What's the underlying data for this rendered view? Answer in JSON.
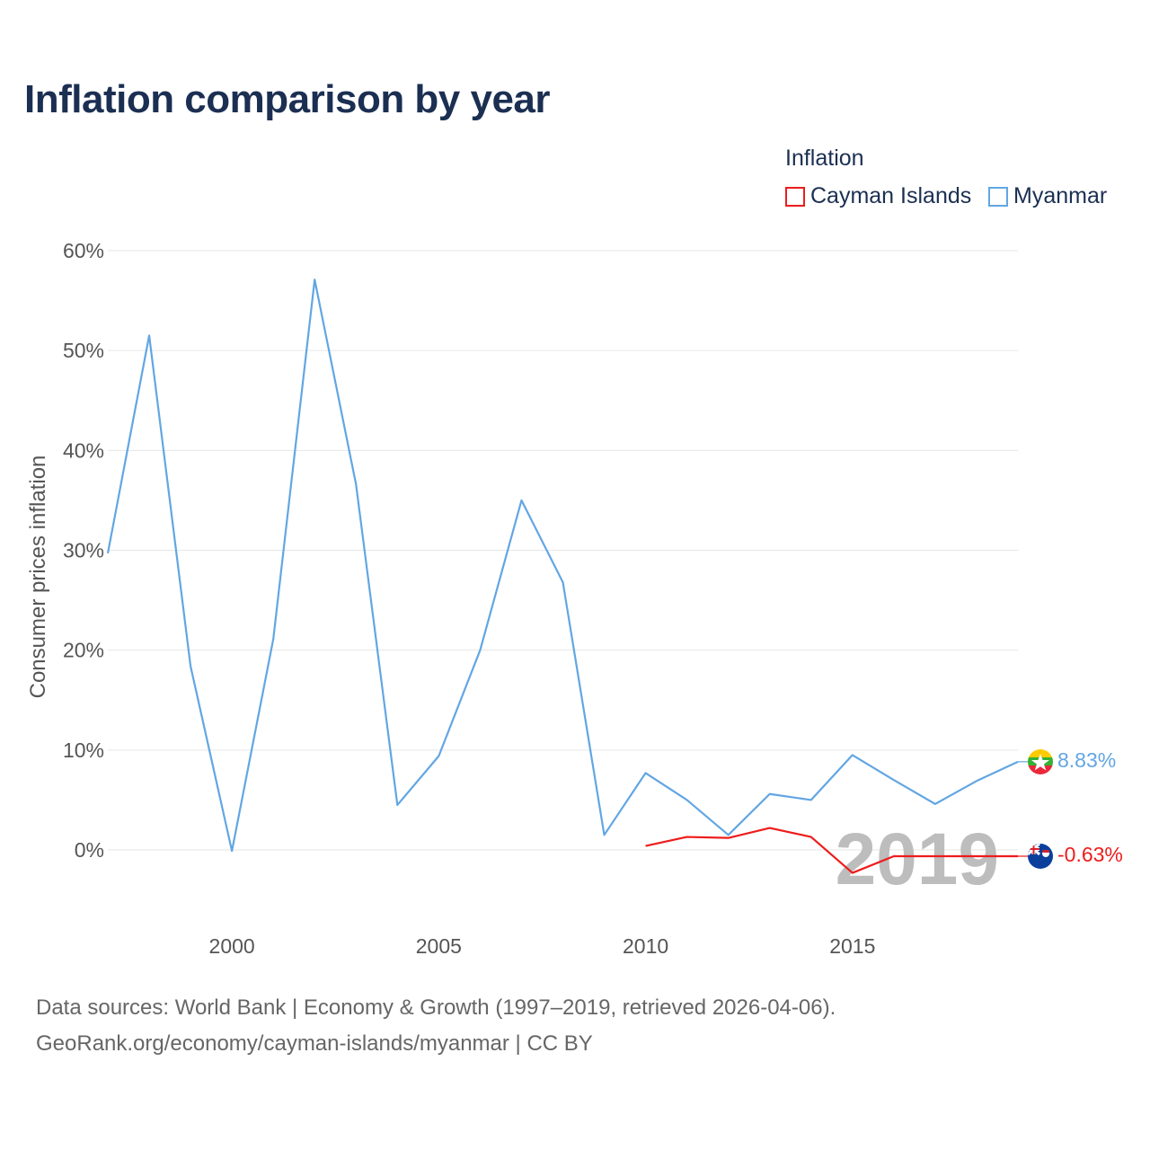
{
  "title": "Inflation comparison by year",
  "legend": {
    "title": "Inflation",
    "items": [
      {
        "label": "Cayman Islands",
        "color": "#ee1c1c"
      },
      {
        "label": "Myanmar",
        "color": "#62a6e3"
      }
    ]
  },
  "year_watermark": "2019",
  "sources": {
    "line1": "Data sources: World Bank | Economy & Growth (1997–2019, retrieved 2026-04-06).",
    "line2": "GeoRank.org/economy/cayman-islands/myanmar | CC BY"
  },
  "chart_data": {
    "type": "line",
    "title": "Inflation comparison by year",
    "xlabel": "",
    "ylabel": "Consumer prices inflation",
    "xlim": [
      1997,
      2019
    ],
    "ylim": [
      -10,
      60
    ],
    "x_ticks": [
      2000,
      2005,
      2010,
      2015
    ],
    "y_ticks": [
      0,
      10,
      20,
      30,
      40,
      50,
      60
    ],
    "y_tick_labels": [
      "0%",
      "10%",
      "20%",
      "30%",
      "40%",
      "50%",
      "60%"
    ],
    "grid": true,
    "legend_position": "top-right",
    "series": [
      {
        "name": "Myanmar",
        "color": "#62a6e3",
        "x": [
          1997,
          1998,
          1999,
          2000,
          2001,
          2002,
          2003,
          2004,
          2005,
          2006,
          2007,
          2008,
          2009,
          2010,
          2011,
          2012,
          2013,
          2014,
          2015,
          2016,
          2017,
          2018,
          2019
        ],
        "values": [
          29.7,
          51.5,
          18.4,
          -0.1,
          21.1,
          57.1,
          36.6,
          4.5,
          9.4,
          20.0,
          35.0,
          26.8,
          1.5,
          7.7,
          5.0,
          1.5,
          5.6,
          5.0,
          9.5,
          7.0,
          4.6,
          6.9,
          8.83
        ],
        "end_label": "8.83%"
      },
      {
        "name": "Cayman Islands",
        "color": "#ee1c1c",
        "x": [
          2010,
          2011,
          2012,
          2013,
          2014,
          2015,
          2016,
          2017,
          2018,
          2019
        ],
        "values": [
          0.4,
          1.3,
          1.2,
          2.2,
          1.3,
          -2.3,
          -0.63,
          -0.63,
          -0.63,
          -0.63
        ],
        "end_label": "-0.63%"
      }
    ]
  }
}
